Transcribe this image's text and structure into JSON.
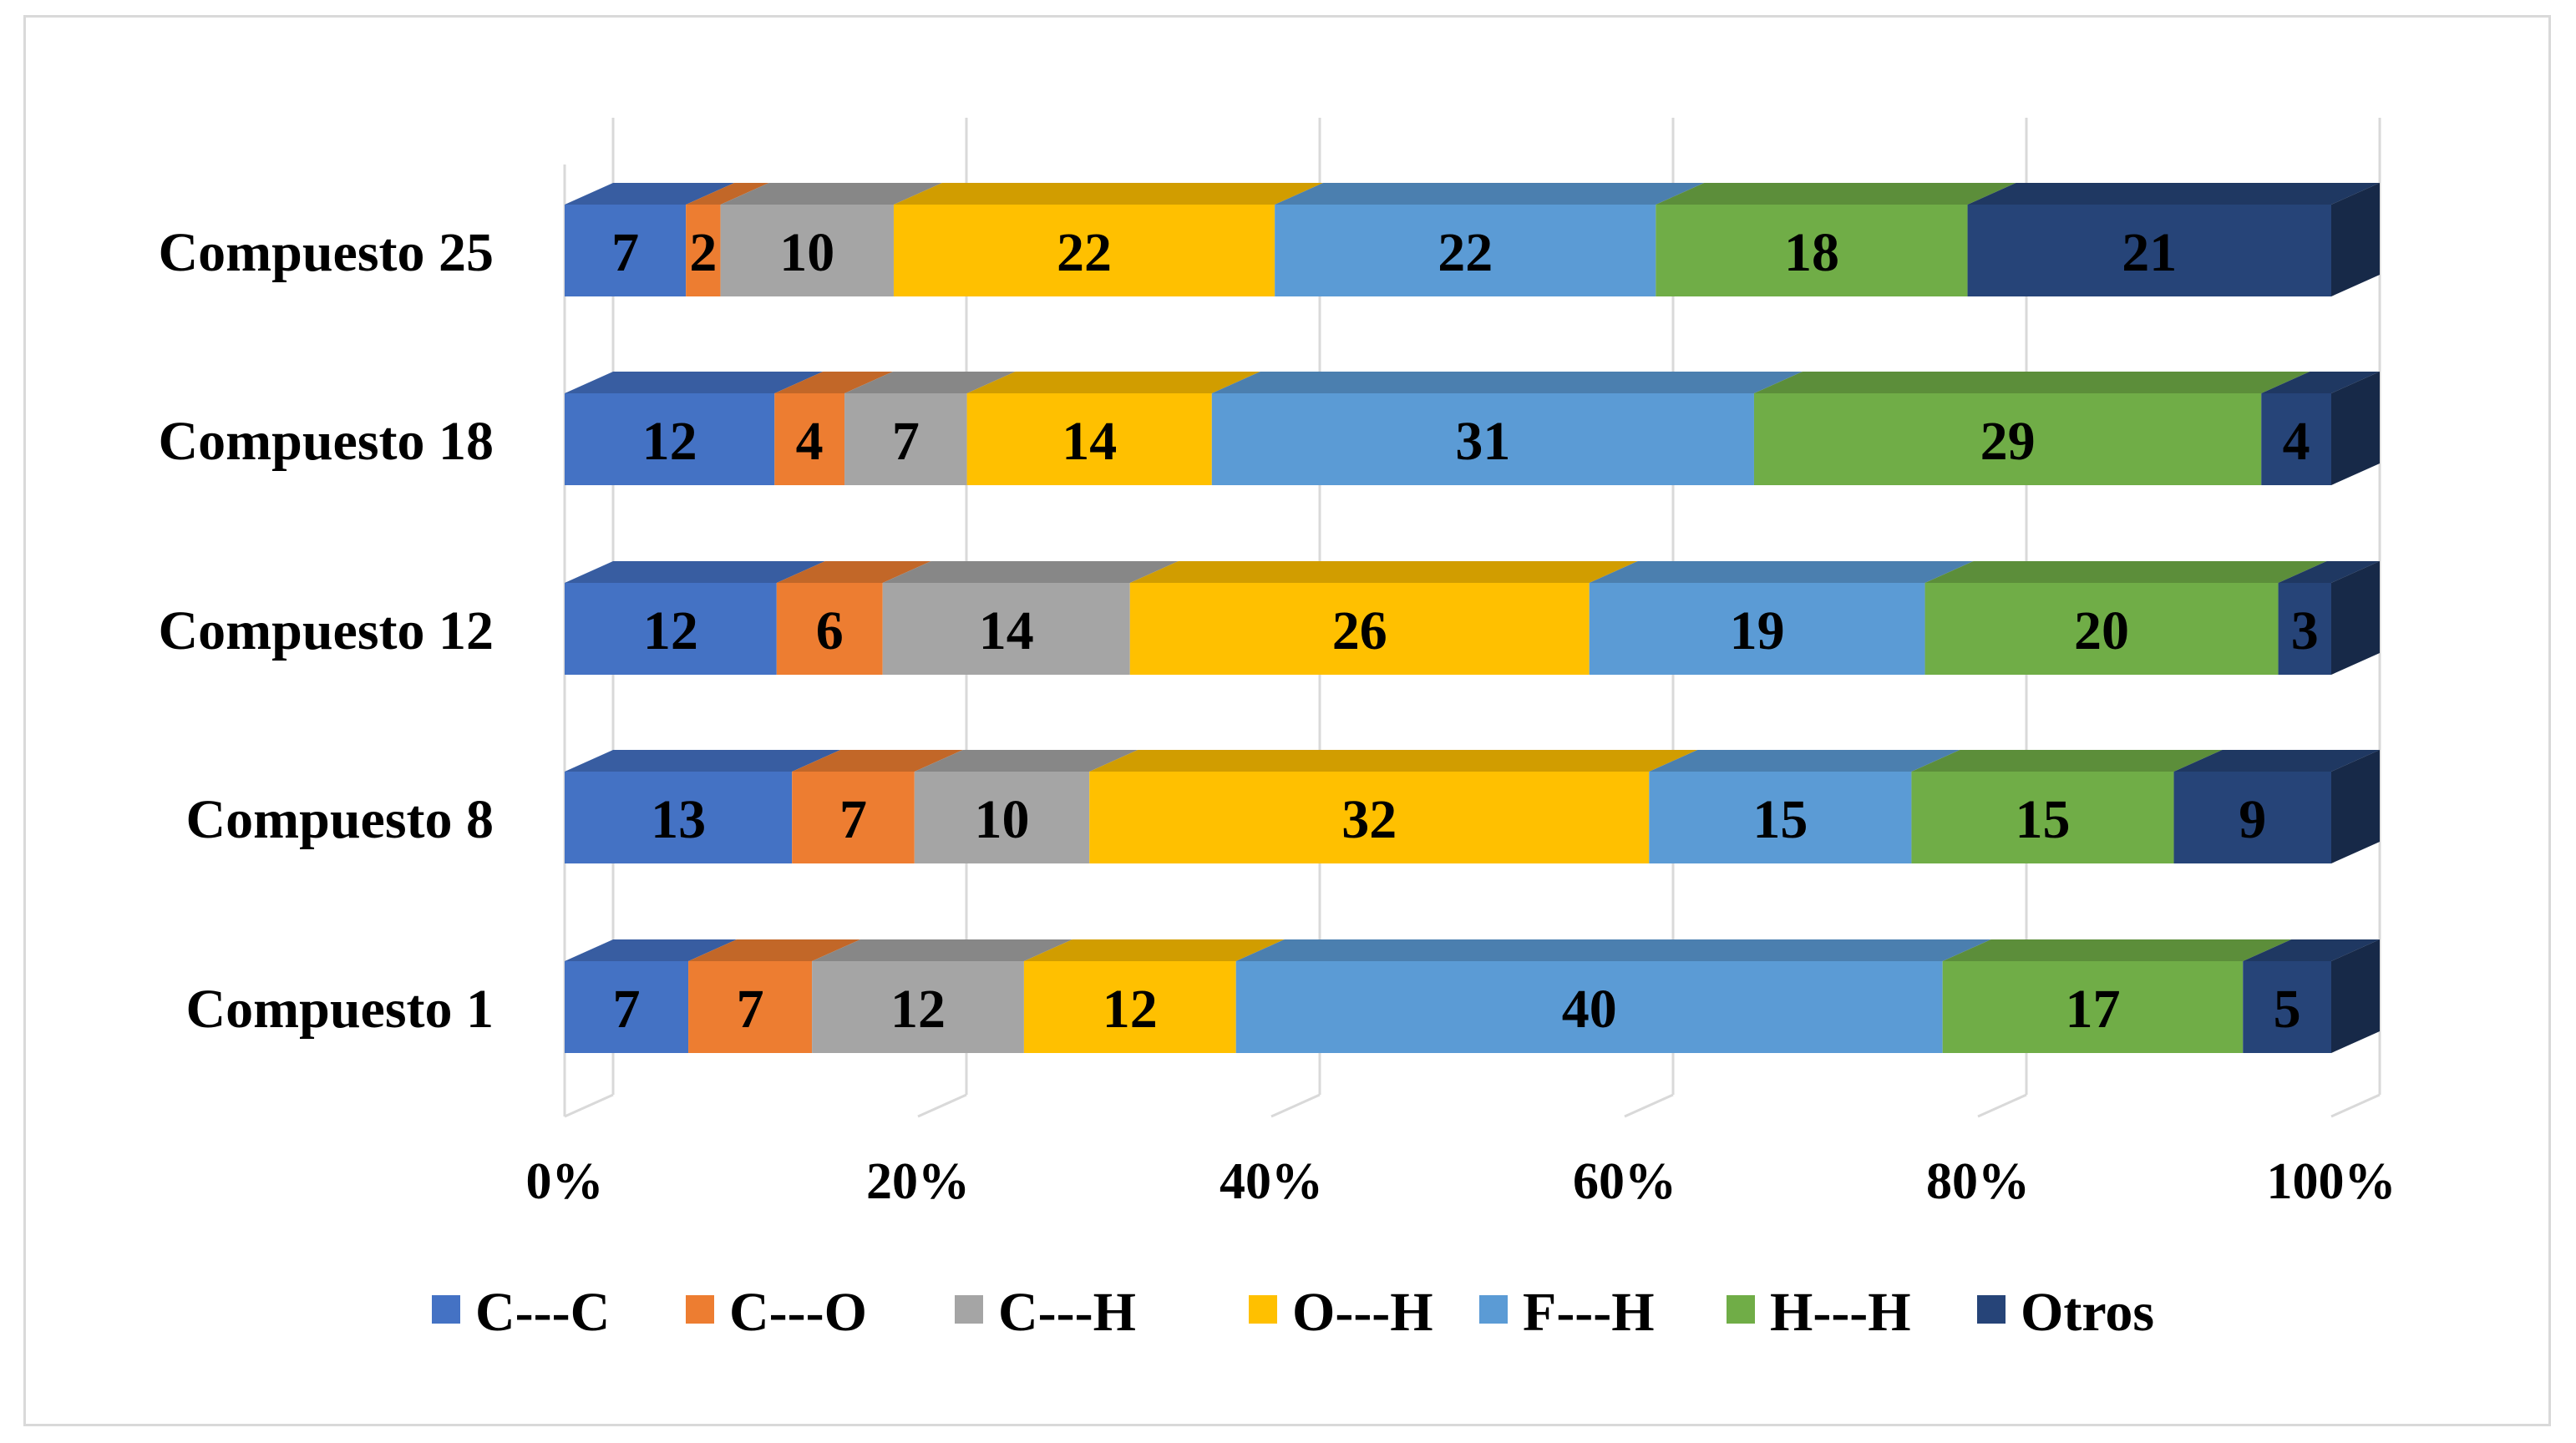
{
  "chart_data": {
    "type": "bar",
    "orientation": "horizontal",
    "stacking": "percent",
    "style": "3d",
    "title": "",
    "xlabel": "",
    "ylabel": "",
    "xlim": [
      0,
      100
    ],
    "grid": true,
    "legend_position": "bottom",
    "categories": [
      "Compuesto 25",
      "Compuesto 18",
      "Compuesto 12",
      "Compuesto 8",
      "Compuesto 1"
    ],
    "x_tick_labels": [
      "0%",
      "20%",
      "40%",
      "60%",
      "80%",
      "100%"
    ],
    "series": [
      {
        "name": "C---C",
        "color": "#4472C4",
        "values": [
          7,
          12,
          12,
          13,
          7
        ]
      },
      {
        "name": "C---O",
        "color": "#ED7D31",
        "values": [
          2,
          4,
          6,
          7,
          7
        ]
      },
      {
        "name": "C---H",
        "color": "#A5A5A5",
        "values": [
          10,
          7,
          14,
          10,
          12
        ]
      },
      {
        "name": "O---H",
        "color": "#FFC000",
        "values": [
          22,
          14,
          26,
          32,
          12
        ]
      },
      {
        "name": "F---H",
        "color": "#5B9BD5",
        "values": [
          22,
          31,
          19,
          15,
          40
        ]
      },
      {
        "name": "H---H",
        "color": "#70AD47",
        "values": [
          18,
          29,
          20,
          15,
          17
        ]
      },
      {
        "name": "Otros",
        "color": "#264478",
        "values": [
          21,
          4,
          3,
          9,
          5
        ]
      }
    ]
  }
}
